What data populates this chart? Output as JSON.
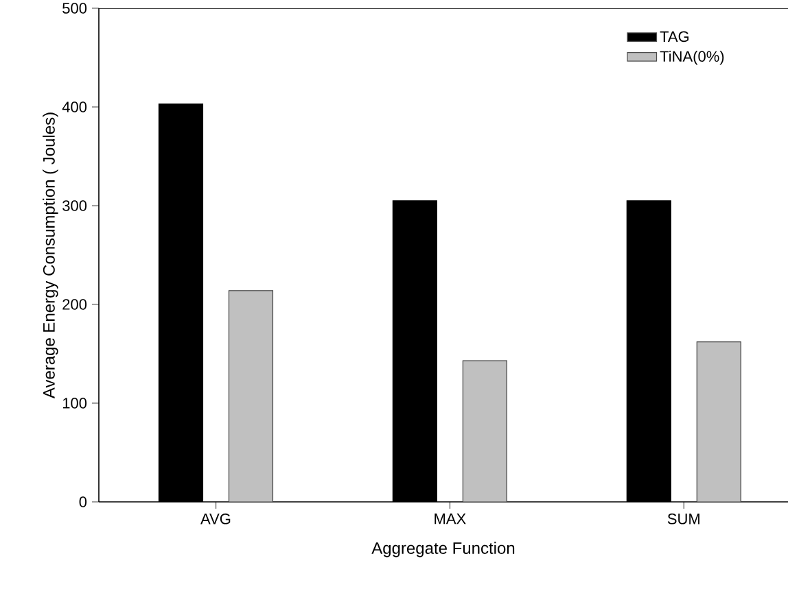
{
  "chart_data": {
    "type": "bar",
    "xlabel": "Aggregate Function",
    "ylabel": "Average Energy Consumption (  Joules)",
    "categories": [
      "AVG",
      "MAX",
      "SUM"
    ],
    "series": [
      {
        "name": "TAG",
        "color": "#000000",
        "values": [
          403,
          305,
          305
        ]
      },
      {
        "name": "TiNA(0%)",
        "color": "#c0c0c0",
        "values": [
          214,
          143,
          162
        ]
      }
    ],
    "ylim": [
      0,
      500
    ],
    "yticks": [
      0,
      100,
      200,
      300,
      400,
      500
    ],
    "legend": "top right"
  }
}
